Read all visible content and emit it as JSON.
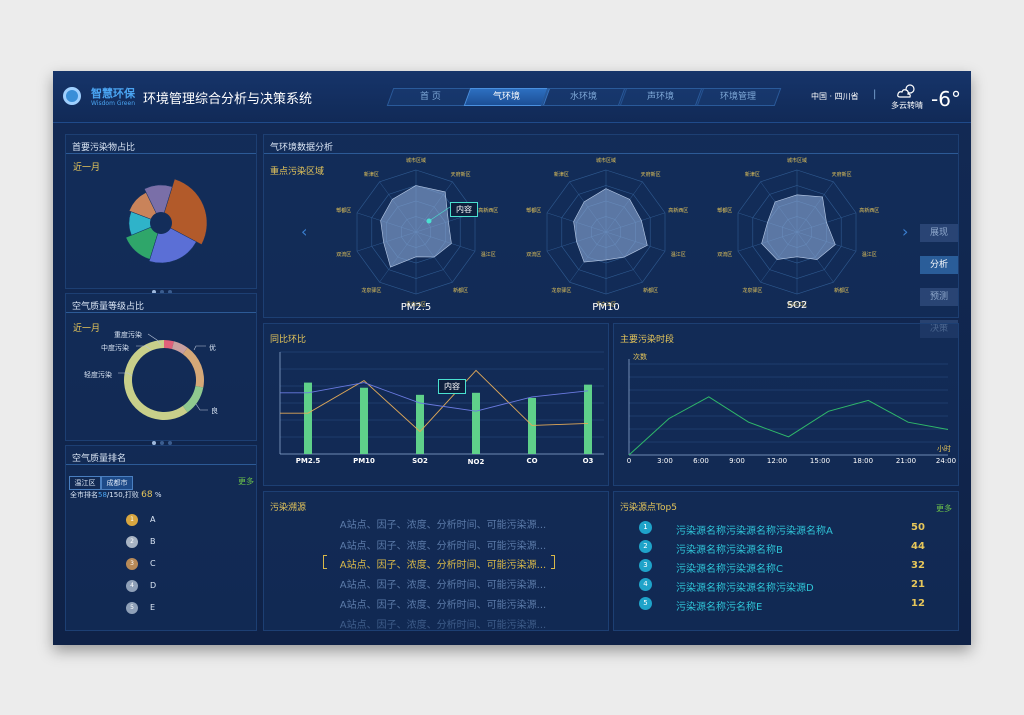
{
  "header": {
    "logo_cn": "智慧环保",
    "logo_en": "Wisdom Green",
    "title": "环境管理综合分析与决策系统",
    "nav": [
      "首 页",
      "气环境",
      "水环境",
      "声环境",
      "环境管理"
    ],
    "nav_active": 1,
    "region": "中国 · 四川省",
    "separator": "|",
    "weather": "多云转晴",
    "temperature": "-6°",
    "weather_icon": "cloud-sun-icon"
  },
  "left": {
    "pollutant_share": {
      "title": "首要污染物占比",
      "period": "近一月"
    },
    "aqi_level": {
      "title": "空气质量等级占比",
      "period": "近一月",
      "labels": [
        "重度污染",
        "中度污染",
        "轻度污染",
        "优",
        "良"
      ]
    },
    "ranking": {
      "title": "空气质量排名",
      "tabs": [
        "温江区",
        "成都市"
      ],
      "more": "更多",
      "summary_prefix": "全市排名",
      "rank": "58",
      "total": "/150",
      "beat_label": ",打败",
      "beat_value": "68",
      "beat_unit": "%",
      "items": [
        "A",
        "B",
        "C",
        "D",
        "E"
      ]
    }
  },
  "main": {
    "title": "气环境数据分析",
    "radar": {
      "title": "重点污染区域",
      "labels": [
        "PM2.5",
        "PM10",
        "SO2"
      ],
      "tooltip": "内容",
      "axis_labels": [
        "城市区域",
        "天府新区",
        "高新西区",
        "温江区",
        "新都区",
        "青白江区",
        "龙泉驿区",
        "双流区",
        "郫都区",
        "新津区"
      ]
    },
    "side_buttons": [
      "展现",
      "分析",
      "预测",
      "决策"
    ],
    "side_active": 1,
    "yoy": {
      "title": "同比环比",
      "tooltip": "内容"
    },
    "period": {
      "title": "主要污染时段",
      "y_label": "次数",
      "x_label": "小时"
    },
    "trace": {
      "title": "污染溯源",
      "lines": [
        "A站点、因子、浓度、分析时间、可能污染源...",
        "A站点、因子、浓度、分析时间、可能污染源...",
        "A站点、因子、浓度、分析时间、可能污染源...",
        "A站点、因子、浓度、分析时间、可能污染源...",
        "A站点、因子、浓度、分析时间、可能污染源...",
        "A站点、因子、浓度、分析时间、可能污染源..."
      ],
      "highlight": 2
    },
    "top5": {
      "title": "污染源点Top5",
      "more": "更多",
      "items": [
        {
          "rank": "1",
          "name": "污染源名称污染源名称污染源名称A",
          "value": "50"
        },
        {
          "rank": "2",
          "name": "污染源名称污染源名称B",
          "value": "44"
        },
        {
          "rank": "3",
          "name": "污染源名称污染源名称C",
          "value": "32"
        },
        {
          "rank": "4",
          "name": "污染源名称污染源名称污染源D",
          "value": "21"
        },
        {
          "rank": "5",
          "name": "污染源名称污名称E",
          "value": "12"
        }
      ]
    }
  },
  "chart_data": [
    {
      "type": "pie",
      "slices": [
        28,
        22,
        14,
        12,
        12,
        12
      ],
      "colors": [
        "#b25a2a",
        "#5b6fd6",
        "#2fa66a",
        "#2fb3c9",
        "#c9835a",
        "#7a6fa8"
      ]
    },
    {
      "type": "pie",
      "categories": [
        "重度污染",
        "中度污染",
        "轻度污染",
        "优",
        "良"
      ],
      "values": [
        4,
        6,
        18,
        12,
        60
      ],
      "colors": [
        "#e0607a",
        "#c9a0a0",
        "#d4a878",
        "#8fc98f",
        "#c8cf8a"
      ]
    },
    {
      "type": "bar",
      "categories": [
        "PM2.5",
        "PM10",
        "SO2",
        "NO2",
        "CO",
        "O3"
      ],
      "values": [
        70,
        65,
        58,
        60,
        55,
        68
      ],
      "series": [
        {
          "values": [
            40,
            72,
            22,
            82,
            28,
            30
          ],
          "color": "#e0a858"
        },
        {
          "values": [
            60,
            70,
            50,
            42,
            56,
            62
          ],
          "color": "#6a7ae0"
        }
      ],
      "ylim": [
        0,
        100
      ],
      "colors": {
        "bar": "#5fd08a"
      }
    },
    {
      "type": "line",
      "x": [
        "0",
        "3:00",
        "6:00",
        "9:00",
        "12:00",
        "15:00",
        "18:00",
        "21:00",
        "24:00"
      ],
      "values": [
        0,
        40,
        64,
        36,
        20,
        48,
        60,
        36,
        28
      ],
      "ylim": [
        0,
        100
      ],
      "colors": {
        "line": "#2fb86a"
      }
    }
  ]
}
